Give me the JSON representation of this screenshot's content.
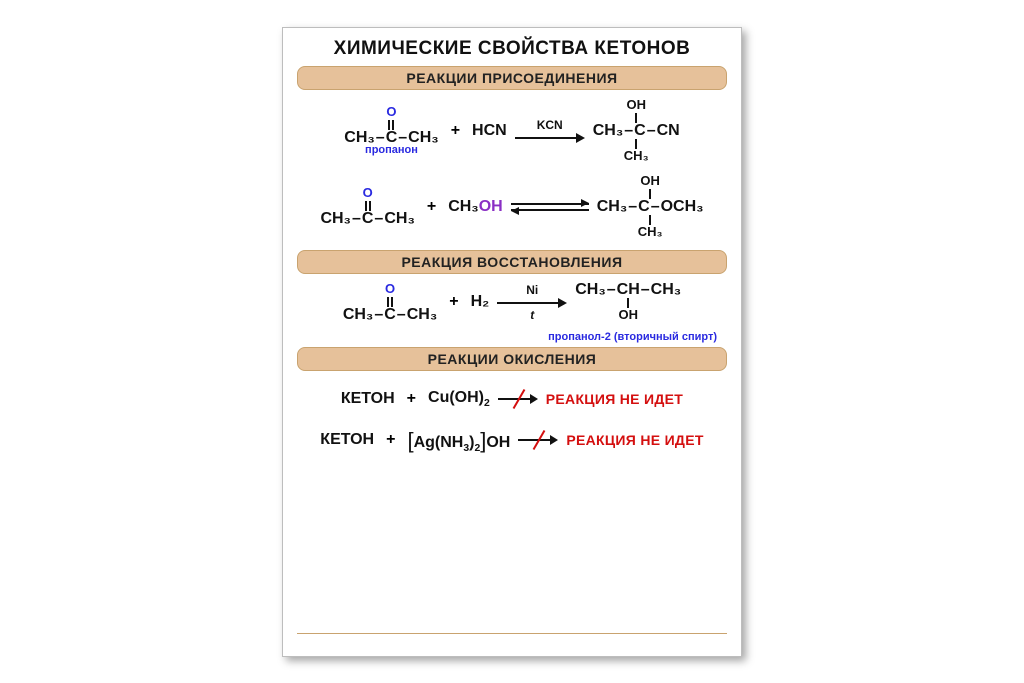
{
  "colors": {
    "page_bg": "#ffffff",
    "poster_border": "#bdbdbd",
    "shadow": "rgba(0,0,0,0.35)",
    "section_bg": "#e6c19a",
    "section_border": "#c9a36f",
    "text": "#111111",
    "blue": "#2a2ae0",
    "purple": "#8a2fc4",
    "red": "#d40f0f"
  },
  "typography": {
    "main_title_pt": 19,
    "section_pt": 14,
    "formula_pt": 16,
    "label_pt": 11
  },
  "title": "ХИМИЧЕСКИЕ СВОЙСТВА КЕТОНОВ",
  "sections": {
    "addition": "РЕАКЦИИ   ПРИСОЕДИНЕНИЯ",
    "reduction": "РЕАКЦИЯ ВОССТАНОВЛЕНИЯ",
    "oxidation": "РЕАКЦИИ ОКИСЛЕНИЯ"
  },
  "rxn1": {
    "left_name": "пропанон",
    "over_arrow": "KCN",
    "reagents_right": "HCN",
    "ch3": "CH₃",
    "C": "C",
    "O": "O",
    "OH": "OH",
    "CN": "CN"
  },
  "rxn2": {
    "methanol_prefix": "CH₃",
    "methanol_oh": "OH",
    "product_oc": "OCH₃"
  },
  "rxn3": {
    "over_arrow": "Ni",
    "under_arrow": "t",
    "h2": "H₂",
    "product_note": "пропанол-2 (вторичный спирт)",
    "ch": "CH"
  },
  "oxid": {
    "ketone": "КЕТОН",
    "cuoh2": "Cu(OH)₂",
    "agnh3": "[Ag(NH₃)₂]OH",
    "no_reaction": "РЕАКЦИЯ НЕ ИДЕТ"
  }
}
